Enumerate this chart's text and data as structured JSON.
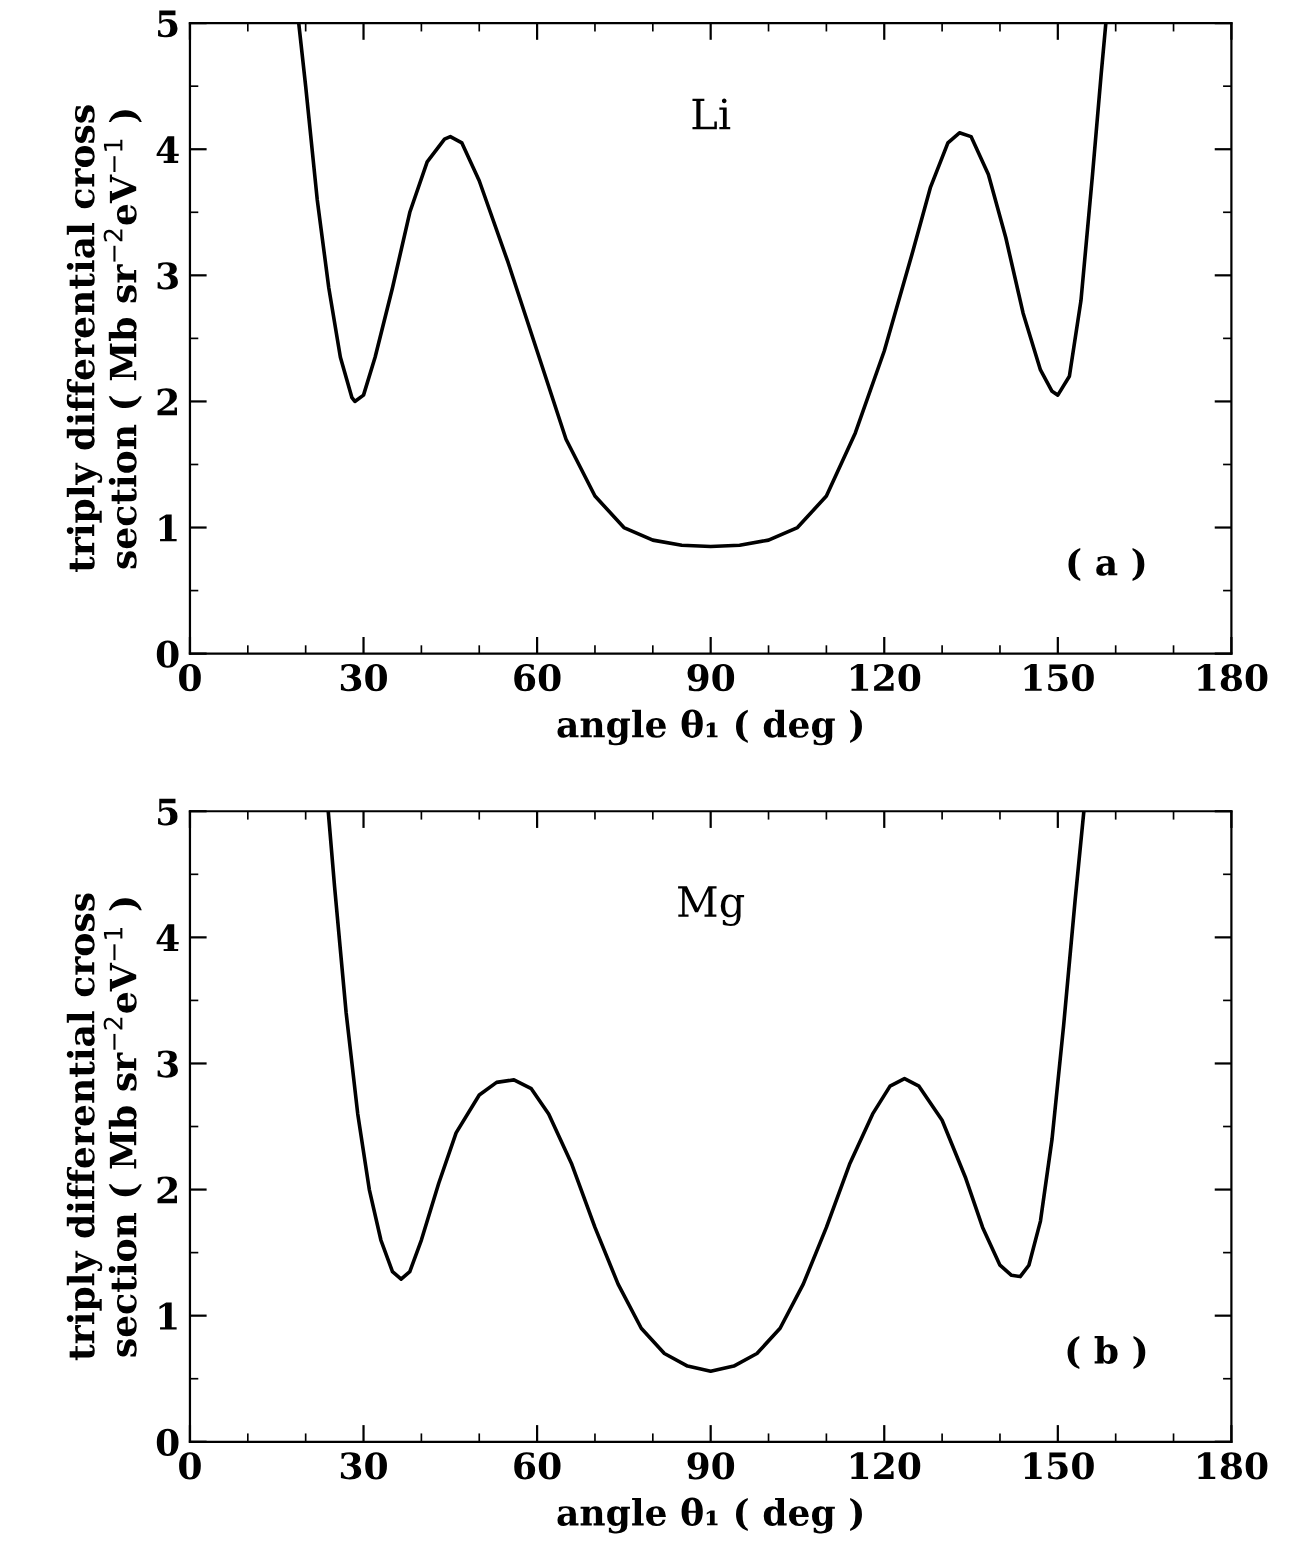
{
  "chart_data": [
    {
      "type": "line",
      "xlabel": "angle θ₁ ( deg )",
      "ylabel": "triply differential cross\nsection ( Mb sr$^{−2}$eV$^{−1}$ )",
      "annotations": [
        "Li",
        "( a )"
      ],
      "xlim": [
        0,
        180
      ],
      "ylim": [
        0,
        5
      ],
      "xticks": [
        0,
        30,
        60,
        90,
        120,
        150,
        180
      ],
      "yticks": [
        0,
        1,
        2,
        3,
        4,
        5
      ],
      "grid": false,
      "legend": false,
      "series": [
        {
          "color": "#000000",
          "x": [
            18.8,
            20,
            22,
            24,
            26,
            28,
            28.5,
            30,
            32,
            35,
            38,
            41,
            44,
            45,
            47,
            50,
            55,
            60,
            65,
            70,
            75,
            80,
            85,
            90,
            95,
            100,
            105,
            110,
            115,
            120,
            125,
            128,
            131,
            133,
            135,
            138,
            141,
            144,
            147,
            149,
            150,
            152,
            154,
            156,
            157.5,
            158.3
          ],
          "values": [
            5,
            4.5,
            3.6,
            2.9,
            2.35,
            2.03,
            2.0,
            2.05,
            2.35,
            2.9,
            3.5,
            3.9,
            4.08,
            4.1,
            4.05,
            3.75,
            3.1,
            2.4,
            1.7,
            1.25,
            1.0,
            0.9,
            0.86,
            0.85,
            0.86,
            0.9,
            1.0,
            1.25,
            1.75,
            2.4,
            3.2,
            3.7,
            4.05,
            4.13,
            4.1,
            3.8,
            3.3,
            2.7,
            2.25,
            2.08,
            2.05,
            2.2,
            2.8,
            3.8,
            4.6,
            5
          ]
        }
      ]
    },
    {
      "type": "line",
      "xlabel": "angle θ₁ ( deg )",
      "ylabel": "triply differential cross\nsection ( Mb sr$^{−2}$eV$^{−1}$ )",
      "annotations": [
        "Mg",
        "( b )"
      ],
      "xlim": [
        0,
        180
      ],
      "ylim": [
        0,
        5
      ],
      "xticks": [
        0,
        30,
        60,
        90,
        120,
        150,
        180
      ],
      "yticks": [
        0,
        1,
        2,
        3,
        4,
        5
      ],
      "grid": false,
      "legend": false,
      "series": [
        {
          "color": "#000000",
          "x": [
            23.9,
            25,
            27,
            29,
            31,
            33,
            35,
            36.5,
            38,
            40,
            43,
            46,
            50,
            53,
            56,
            59,
            62,
            66,
            70,
            74,
            78,
            82,
            86,
            90,
            94,
            98,
            102,
            106,
            110,
            114,
            118,
            121,
            123.5,
            126,
            130,
            134,
            137,
            140,
            142,
            143.5,
            145,
            147,
            149,
            151,
            153,
            154.5
          ],
          "values": [
            5,
            4.4,
            3.4,
            2.6,
            2.0,
            1.6,
            1.35,
            1.29,
            1.35,
            1.6,
            2.05,
            2.45,
            2.75,
            2.85,
            2.87,
            2.8,
            2.6,
            2.2,
            1.7,
            1.25,
            0.9,
            0.7,
            0.6,
            0.56,
            0.6,
            0.7,
            0.9,
            1.25,
            1.7,
            2.2,
            2.6,
            2.82,
            2.88,
            2.82,
            2.55,
            2.1,
            1.7,
            1.4,
            1.32,
            1.31,
            1.4,
            1.75,
            2.4,
            3.3,
            4.3,
            5
          ]
        }
      ]
    }
  ]
}
